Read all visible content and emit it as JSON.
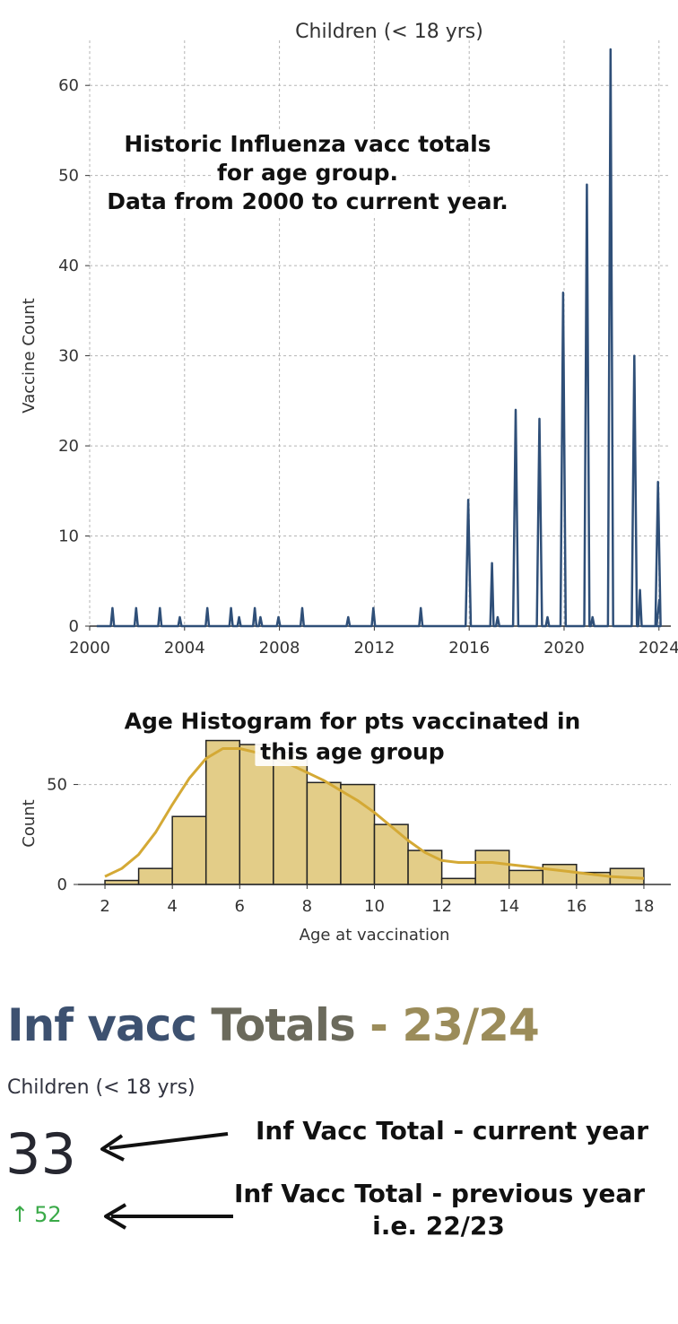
{
  "colors": {
    "line": "#2f4f78",
    "hist_fill": "#e3cd88",
    "hist_edge": "#222222",
    "kde": "#d4a935",
    "grid": "#b5b5b5",
    "delta": "#3aaa48"
  },
  "chart_data": [
    {
      "type": "line",
      "title": "Children (< 18 yrs)",
      "ylabel": "Vaccine Count",
      "xlabel": "",
      "xlim": [
        2000,
        2024.5
      ],
      "ylim": [
        0,
        64
      ],
      "xticks": [
        "2000",
        "2004",
        "2008",
        "2012",
        "2016",
        "2020",
        "2024"
      ],
      "yticks": [
        "0",
        "10",
        "20",
        "30",
        "40",
        "50",
        "60"
      ],
      "grid": true,
      "series": [
        {
          "x": [
            2000.96,
            2001.96,
            2002.96,
            2003.8,
            2004.96,
            2005.96,
            2006.3,
            2006.96,
            2007.2,
            2007.96,
            2008.96,
            2010.9,
            2011.96,
            2013.96,
            2015.96,
            2016.96,
            2017.2,
            2017.96,
            2018.96,
            2019.3,
            2019.96,
            2020.96,
            2021.2,
            2021.96,
            2022.96,
            2023.2,
            2023.96
          ],
          "y": [
            2,
            2,
            2,
            1,
            2,
            2,
            1,
            2,
            1,
            1,
            2,
            1,
            2,
            2,
            14,
            7,
            1,
            24,
            23,
            1,
            37,
            49,
            1,
            64,
            30,
            4,
            16
          ]
        }
      ],
      "end_value": 3
    },
    {
      "type": "bar",
      "subtype": "histogram",
      "title": "",
      "xlabel": "Age at vaccination",
      "ylabel": "Count",
      "xticks": [
        "2",
        "4",
        "6",
        "8",
        "10",
        "12",
        "14",
        "16",
        "18"
      ],
      "yticks": [
        "0",
        "50"
      ],
      "xlim": [
        2,
        18
      ],
      "ylim": [
        0,
        70
      ],
      "bin_edges": [
        2,
        3,
        4,
        5,
        6,
        7,
        8,
        9,
        10,
        11,
        12,
        13,
        14,
        15,
        16,
        17,
        18
      ],
      "values": [
        2,
        8,
        34,
        72,
        70,
        66,
        51,
        50,
        30,
        17,
        3,
        17,
        7,
        10,
        6,
        8
      ],
      "kde": {
        "x": [
          2,
          2.5,
          3,
          3.5,
          4,
          4.5,
          5,
          5.5,
          6,
          6.5,
          7,
          7.5,
          8,
          8.5,
          9,
          9.5,
          10,
          10.5,
          11,
          11.5,
          12,
          12.5,
          13,
          13.5,
          14,
          14.5,
          15,
          15.5,
          16,
          16.5,
          17,
          17.5,
          18
        ],
        "y": [
          4,
          8,
          15,
          26,
          40,
          53,
          63,
          68,
          68,
          66,
          63,
          60,
          56,
          52,
          47,
          42,
          36,
          29,
          22,
          16,
          12,
          11,
          11,
          11,
          10,
          9,
          8,
          7,
          6,
          5,
          4,
          3.5,
          3
        ]
      }
    }
  ],
  "annotations": {
    "line_note": [
      "Historic Influenza vacc totals",
      "for age group.",
      "Data from 2000 to current year."
    ],
    "hist_note": [
      "Age Histogram for pts vaccinated in",
      "this age group"
    ],
    "current_note": "Inf Vacc Total - current year",
    "previous_note": [
      "Inf Vacc Total - previous year",
      "i.e. 22/23"
    ]
  },
  "metric": {
    "title_part1": "Inf vacc",
    "title_part2": " Totals",
    "title_part3": " - 23/24",
    "label": "Children (< 18 yrs)",
    "value": "33",
    "delta_arrow": "↑",
    "delta": "52"
  }
}
